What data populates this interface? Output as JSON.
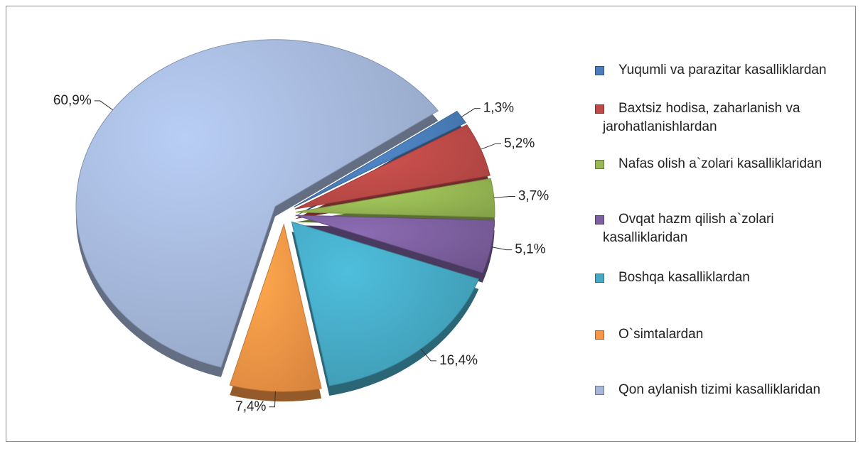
{
  "chart_data": {
    "type": "pie",
    "categories": [
      "Yuqumli va parazitar kasalliklardan",
      "Baxtsiz hodisa, zaharlanish va jarohatlanishlardan",
      "Nafas olish a`zolari kasalliklaridan",
      "Ovqat hazm qilish a`zolari kasalliklaridan",
      "Boshqa kasalliklardan",
      "O`simtalardan",
      "Qon aylanish tizimi kasalliklaridan"
    ],
    "values": [
      1.3,
      5.2,
      3.7,
      5.1,
      16.4,
      7.4,
      60.9
    ],
    "value_labels": [
      "1,3%",
      "5,2%",
      "3,7%",
      "5,1%",
      "16,4%",
      "7,4%",
      "60,9%"
    ],
    "colors": [
      "#4a7ebb",
      "#be4b48",
      "#98b954",
      "#7d60a0",
      "#46aac5",
      "#f79646",
      "#a5b8db"
    ],
    "legend": "right"
  }
}
